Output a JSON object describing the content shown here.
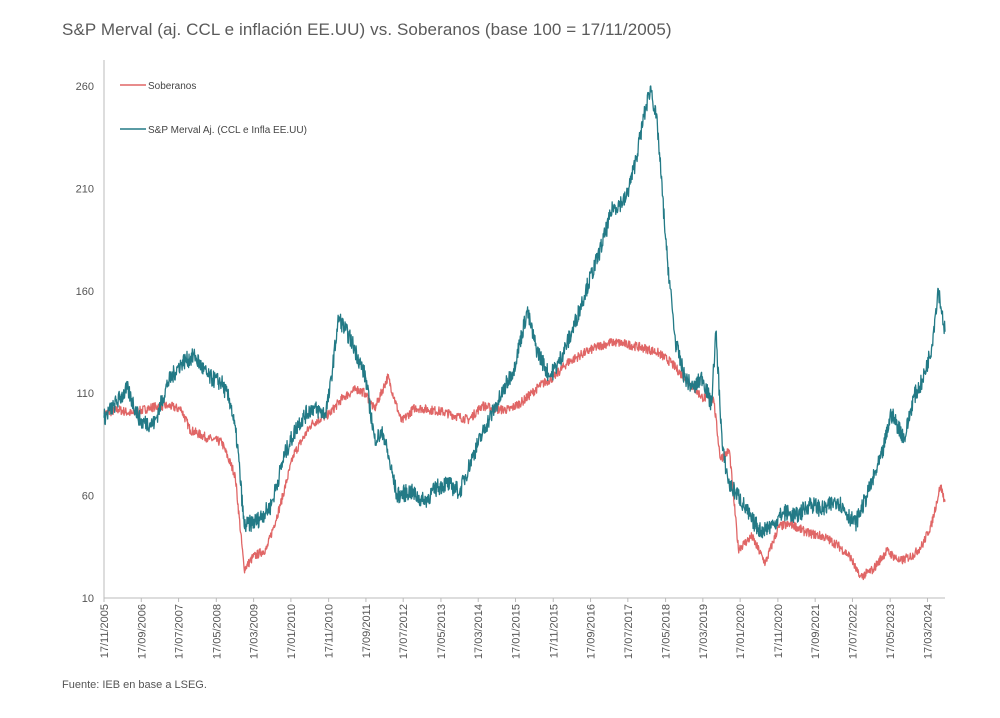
{
  "title": "S&P Merval (aj. CCL e inflación EE.UU)  vs. Soberanos (base 100 = 17/11/2005)",
  "source": "Fuente: IEB en base a LSEG.",
  "chart_data": {
    "type": "line",
    "title": "S&P Merval (aj. CCL e inflación EE.UU)  vs. Soberanos (base 100 = 17/11/2005)",
    "xlabel": "",
    "ylabel": "",
    "ylim": [
      10,
      270
    ],
    "yticks": [
      10,
      60,
      110,
      160,
      210,
      260
    ],
    "xlim": [
      2005.88,
      2024.6
    ],
    "xtick_labels": [
      "17/11/2005",
      "17/09/2006",
      "17/07/2007",
      "17/05/2008",
      "17/03/2009",
      "17/01/2010",
      "17/11/2010",
      "17/09/2011",
      "17/07/2012",
      "17/05/2013",
      "17/03/2014",
      "17/01/2015",
      "17/11/2015",
      "17/09/2016",
      "17/07/2017",
      "17/05/2018",
      "17/03/2019",
      "17/01/2020",
      "17/11/2020",
      "17/09/2021",
      "17/07/2022",
      "17/05/2023",
      "17/03/2024"
    ],
    "xtick_positions": [
      2005.88,
      2006.71,
      2007.54,
      2008.38,
      2009.21,
      2010.04,
      2010.88,
      2011.71,
      2012.54,
      2013.38,
      2014.21,
      2015.04,
      2015.88,
      2016.71,
      2017.54,
      2018.38,
      2019.21,
      2020.04,
      2020.88,
      2021.71,
      2022.54,
      2023.38,
      2024.21
    ],
    "legend_position": "top-left",
    "colors": {
      "soberanos": "#e06666",
      "merval": "#237a86"
    },
    "series": [
      {
        "name": "Soberanos",
        "color": "#e06666",
        "x": [
          2005.88,
          2006.2,
          2006.5,
          2006.9,
          2007.3,
          2007.6,
          2007.8,
          2008.2,
          2008.5,
          2008.8,
          2009.0,
          2009.2,
          2009.5,
          2009.8,
          2010.1,
          2010.5,
          2010.9,
          2011.2,
          2011.5,
          2011.7,
          2011.9,
          2012.2,
          2012.5,
          2012.8,
          2013.1,
          2013.4,
          2013.7,
          2014.0,
          2014.3,
          2014.6,
          2014.9,
          2015.2,
          2015.6,
          2015.9,
          2016.2,
          2016.6,
          2016.9,
          2017.2,
          2017.5,
          2017.9,
          2018.2,
          2018.5,
          2018.9,
          2019.2,
          2019.45,
          2019.6,
          2019.8,
          2020.0,
          2020.3,
          2020.6,
          2020.9,
          2021.2,
          2021.5,
          2021.9,
          2022.2,
          2022.5,
          2022.7,
          2023.0,
          2023.3,
          2023.6,
          2023.9,
          2024.1,
          2024.3,
          2024.5,
          2024.6
        ],
        "values": [
          100,
          102,
          100,
          103,
          104,
          102,
          92,
          88,
          86,
          70,
          24,
          30,
          34,
          55,
          80,
          95,
          100,
          108,
          112,
          110,
          102,
          118,
          96,
          103,
          102,
          101,
          99,
          97,
          104,
          102,
          102,
          106,
          114,
          118,
          125,
          130,
          133,
          135,
          134,
          132,
          130,
          125,
          115,
          108,
          107,
          78,
          82,
          34,
          40,
          27,
          45,
          46,
          42,
          40,
          36,
          30,
          20,
          24,
          33,
          28,
          31,
          36,
          46,
          65,
          57
        ]
      },
      {
        "name": "S&P Merval Aj. (CCL e Infla EE.UU)",
        "color": "#237a86",
        "x": [
          2005.88,
          2006.1,
          2006.4,
          2006.7,
          2007.0,
          2007.3,
          2007.6,
          2007.9,
          2008.2,
          2008.5,
          2008.7,
          2008.85,
          2009.0,
          2009.3,
          2009.6,
          2009.9,
          2010.2,
          2010.5,
          2010.8,
          2010.9,
          2011.1,
          2011.4,
          2011.7,
          2011.9,
          2012.1,
          2012.4,
          2012.7,
          2013.0,
          2013.3,
          2013.5,
          2013.8,
          2014.1,
          2014.4,
          2014.7,
          2015.0,
          2015.3,
          2015.5,
          2015.8,
          2016.0,
          2016.3,
          2016.6,
          2016.9,
          2017.2,
          2017.5,
          2017.7,
          2017.9,
          2018.05,
          2018.2,
          2018.4,
          2018.6,
          2018.8,
          2019.0,
          2019.2,
          2019.4,
          2019.5,
          2019.65,
          2019.8,
          2020.0,
          2020.3,
          2020.5,
          2020.8,
          2021.0,
          2021.3,
          2021.6,
          2021.9,
          2022.2,
          2022.4,
          2022.6,
          2022.9,
          2023.2,
          2023.4,
          2023.7,
          2023.9,
          2024.1,
          2024.3,
          2024.45,
          2024.6
        ],
        "values": [
          98,
          104,
          112,
          96,
          95,
          115,
          125,
          128,
          118,
          115,
          105,
          85,
          45,
          48,
          55,
          80,
          95,
          103,
          100,
          110,
          147,
          135,
          118,
          88,
          90,
          60,
          62,
          57,
          64,
          66,
          62,
          80,
          95,
          108,
          122,
          150,
          132,
          118,
          125,
          140,
          160,
          178,
          200,
          205,
          222,
          245,
          260,
          240,
          180,
          135,
          118,
          112,
          118,
          104,
          140,
          82,
          65,
          60,
          48,
          43,
          46,
          52,
          50,
          56,
          53,
          58,
          52,
          46,
          62,
          80,
          100,
          88,
          108,
          116,
          132,
          161,
          140
        ]
      }
    ]
  }
}
